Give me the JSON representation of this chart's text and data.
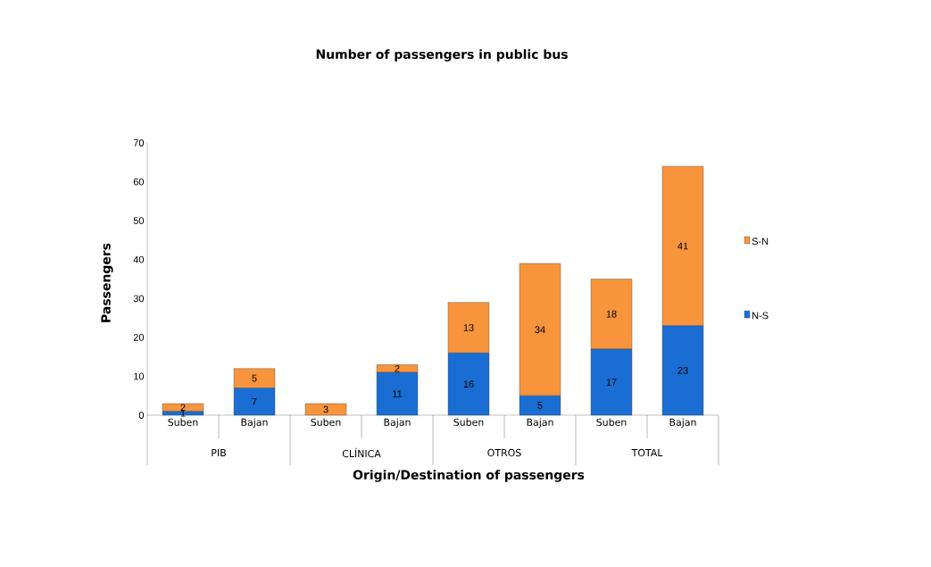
{
  "chart_data": {
    "type": "bar",
    "title": "Number of passengers in public bus",
    "xlabel": "Origin/Destination of passengers",
    "ylabel": "Passengers",
    "categories": [
      "Suben",
      "Bajan",
      "Suben",
      "Bajan",
      "Suben",
      "Bajan",
      "Suben",
      "Bajan"
    ],
    "annotations": [
      "PIB",
      "CLÍNICA",
      "OTROS",
      "TOTAL"
    ],
    "series": [
      {
        "name": "N-S",
        "color": "#1a6dd2",
        "values": [
          1,
          7,
          0,
          11,
          16,
          5,
          17,
          23
        ],
        "value_labels": [
          "1",
          "7",
          null,
          "11",
          "16",
          "5",
          "17",
          "23"
        ]
      },
      {
        "name": "S-N",
        "color": "#f7943c",
        "values": [
          2,
          5,
          3,
          2,
          13,
          34,
          18,
          41
        ],
        "value_labels": [
          "2",
          "5",
          "3",
          "2",
          "13",
          "34",
          "18",
          "41"
        ]
      }
    ],
    "stacked": true,
    "ylim": [
      0,
      70
    ],
    "yticks": [
      0,
      10,
      20,
      30,
      40,
      50,
      60,
      70
    ],
    "legend": "right"
  }
}
